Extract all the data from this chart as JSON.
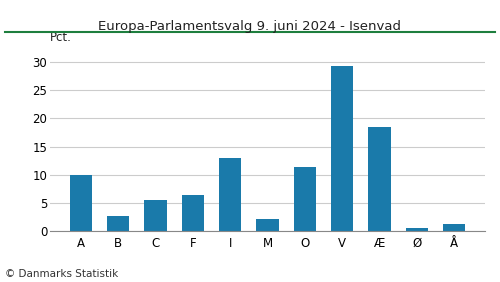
{
  "title": "Europa-Parlamentsvalg 9. juni 2024 - Isenvad",
  "categories": [
    "A",
    "B",
    "C",
    "F",
    "I",
    "M",
    "O",
    "V",
    "Æ",
    "Ø",
    "Å"
  ],
  "values": [
    10.0,
    2.7,
    5.6,
    6.4,
    13.0,
    2.2,
    11.4,
    29.3,
    18.4,
    0.6,
    1.3
  ],
  "bar_color": "#1a7aaa",
  "ylabel": "Pct.",
  "ylim": [
    0,
    32
  ],
  "yticks": [
    0,
    5,
    10,
    15,
    20,
    25,
    30
  ],
  "footer": "© Danmarks Statistik",
  "title_color": "#222222",
  "grid_color": "#cccccc",
  "title_line_color": "#1e7e3e",
  "background_color": "#ffffff"
}
